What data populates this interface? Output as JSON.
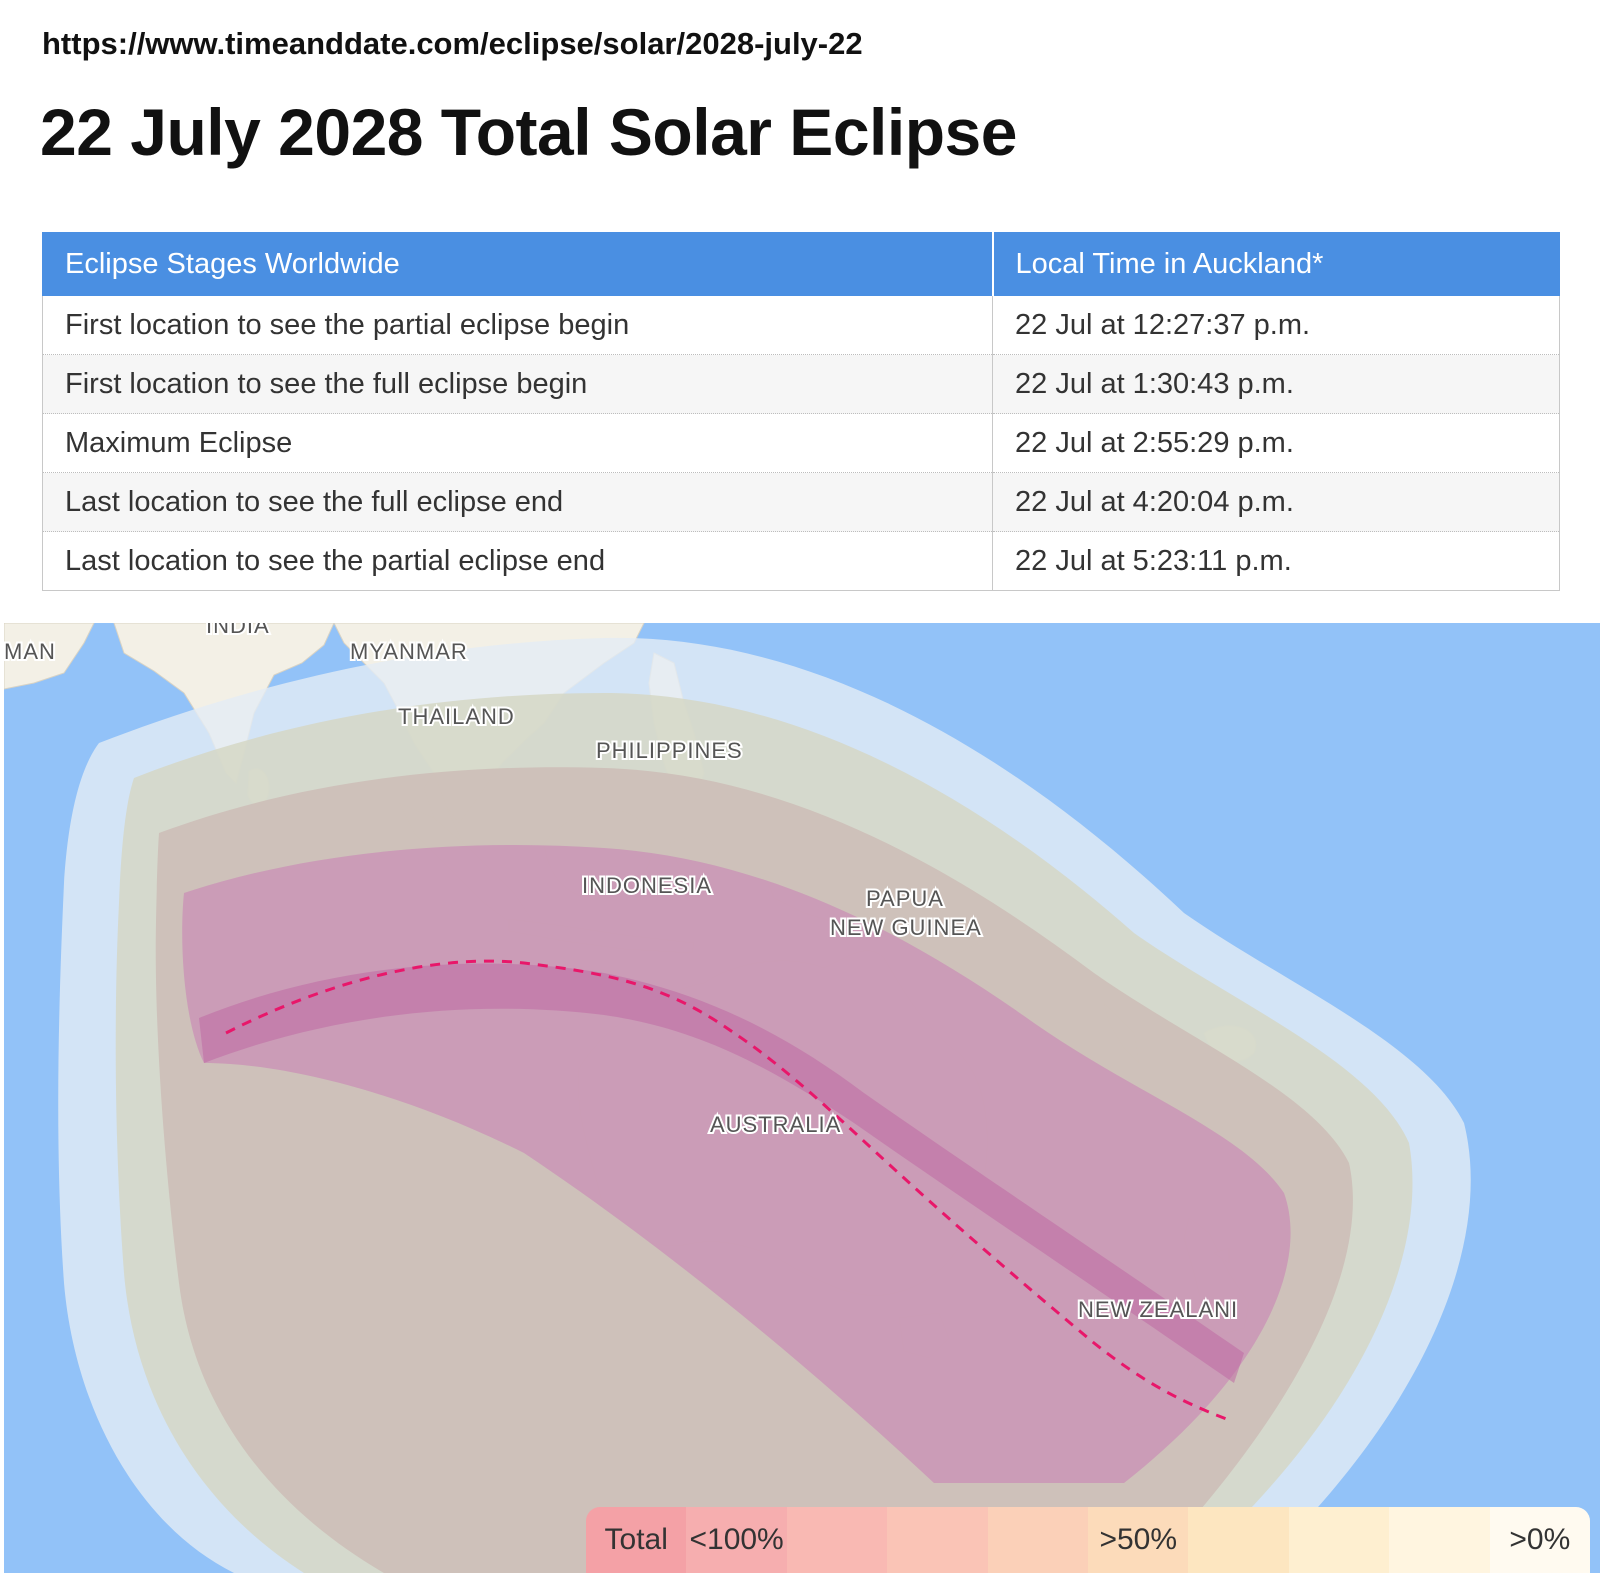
{
  "url": "https://www.timeanddate.com/eclipse/solar/2028-july-22",
  "title": "22 July 2028 Total Solar Eclipse",
  "table": {
    "headers": [
      "Eclipse Stages Worldwide",
      "Local Time in Auckland*"
    ],
    "rows": [
      [
        "First location to see the partial eclipse begin",
        "22 Jul at 12:27:37 p.m."
      ],
      [
        "First location to see the full eclipse begin",
        "22 Jul at 1:30:43 p.m."
      ],
      [
        "Maximum Eclipse",
        "22 Jul at 2:55:29 p.m."
      ],
      [
        "Last location to see the full eclipse end",
        "22 Jul at 4:20:04 p.m."
      ],
      [
        "Last location to see the partial eclipse end",
        "22 Jul at 5:23:11 p.m."
      ]
    ]
  },
  "map": {
    "labels": {
      "oman": "MAN",
      "india": "INDIA",
      "myanmar": "MYANMAR",
      "thailand": "THAILAND",
      "philippines": "PHILIPPINES",
      "indonesia": "INDONESIA",
      "papua_line1": "PAPUA",
      "papua_line2": "NEW GUINEA",
      "australia": "AUSTRALIA",
      "new_zealand": "NEW ZEALANI"
    },
    "colors": {
      "ocean": "#92c2f8",
      "land": "#f3f0e6",
      "path_of_totality": "#e8176a"
    }
  },
  "legend": [
    {
      "label": "Total",
      "color": "#f4a1a6"
    },
    {
      "label": "<100%",
      "color": "#f6aeaf"
    },
    {
      "label": "",
      "color": "#f9b9b3"
    },
    {
      "label": "",
      "color": "#fac4b6"
    },
    {
      "label": "",
      "color": "#fbd0b8"
    },
    {
      "label": ">50%",
      "color": "#fcdbba"
    },
    {
      "label": "",
      "color": "#fde6c0"
    },
    {
      "label": "",
      "color": "#feefd0"
    },
    {
      "label": "",
      "color": "#fff5e0"
    },
    {
      "label": ">0%",
      "color": "#fffaf0"
    }
  ]
}
